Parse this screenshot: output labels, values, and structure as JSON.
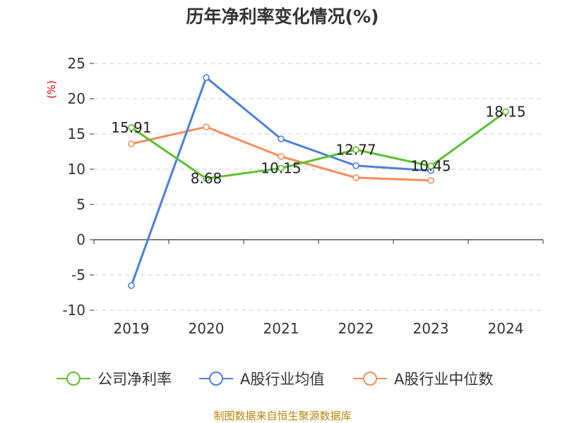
{
  "chart_data": {
    "type": "line",
    "title": "历年净利率变化情况(%)",
    "ylabel": "(%)",
    "xlabel": "",
    "categories": [
      "2019",
      "2020",
      "2021",
      "2022",
      "2023",
      "2024"
    ],
    "ylim": [
      -10,
      25
    ],
    "yticks": [
      25,
      20,
      15,
      10,
      5,
      0,
      -5,
      -10
    ],
    "ytick_labels": [
      "25",
      "20",
      "15",
      "10",
      "5",
      "0",
      "-5",
      "-10"
    ],
    "grid": true,
    "legend_position": "bottom",
    "series": [
      {
        "name": "公司净利率",
        "color": "#5cc02e",
        "values": [
          15.91,
          8.68,
          10.15,
          12.77,
          10.45,
          18.15
        ],
        "labels": [
          "15.91",
          "8.68",
          "10.15",
          "12.77",
          "10.45",
          "18.15"
        ]
      },
      {
        "name": "A股行业均值",
        "color": "#4a7fd8",
        "values": [
          -6.5,
          23.0,
          14.3,
          10.5,
          9.8,
          null
        ]
      },
      {
        "name": "A股行业中位数",
        "color": "#f58d5b",
        "values": [
          13.6,
          16.0,
          11.8,
          8.8,
          8.4,
          null
        ]
      }
    ],
    "source": "制图数据来自恒生聚源数据库"
  }
}
